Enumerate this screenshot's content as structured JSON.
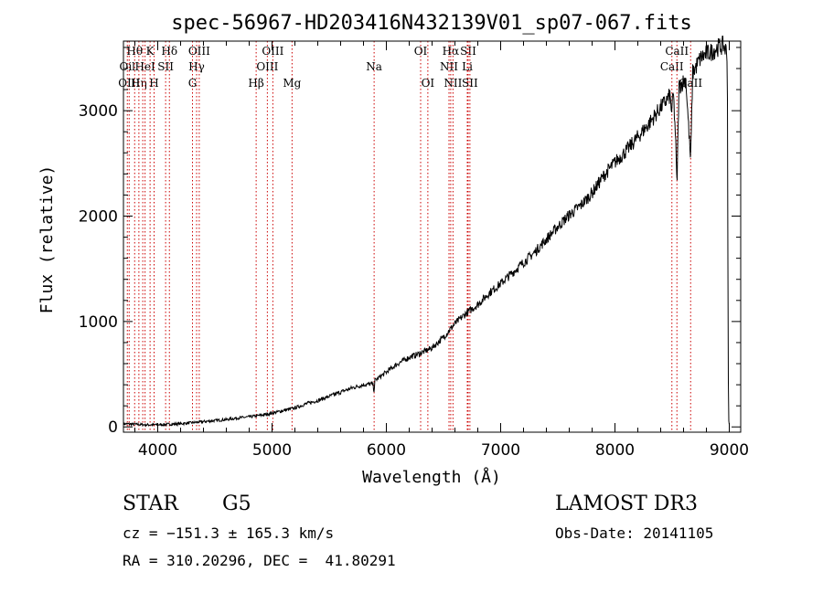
{
  "chart_data": {
    "type": "line",
    "title": "spec-56967-HD203416N432139V01_sp07-067.fits",
    "xlabel": "Wavelength (Å)",
    "ylabel": "Flux (relative)",
    "xlim": [
      3700,
      9100
    ],
    "ylim": [
      -50,
      3660
    ],
    "x_ticks": [
      4000,
      5000,
      6000,
      7000,
      8000,
      9000
    ],
    "y_ticks": [
      0,
      1000,
      2000,
      3000
    ],
    "series": [
      {
        "name": "spectrum",
        "x": [
          3700,
          3800,
          3900,
          4000,
          4100,
          4200,
          4300,
          4400,
          4500,
          4600,
          4700,
          4800,
          4900,
          5000,
          5100,
          5200,
          5300,
          5400,
          5500,
          5600,
          5700,
          5800,
          5880,
          5893,
          5900,
          6000,
          6100,
          6200,
          6300,
          6400,
          6500,
          6600,
          6700,
          6800,
          6900,
          7000,
          7100,
          7200,
          7300,
          7400,
          7500,
          7600,
          7700,
          7800,
          7900,
          8000,
          8100,
          8200,
          8300,
          8400,
          8480,
          8498,
          8510,
          8530,
          8542,
          8560,
          8620,
          8662,
          8680,
          8750,
          8800,
          8850,
          8900,
          8950,
          8980,
          8985,
          8990,
          8995,
          9000
        ],
        "y": [
          30,
          25,
          20,
          20,
          25,
          30,
          40,
          50,
          60,
          70,
          85,
          95,
          110,
          130,
          155,
          180,
          220,
          250,
          290,
          330,
          370,
          400,
          410,
          340,
          440,
          520,
          600,
          660,
          700,
          750,
          850,
          980,
          1080,
          1160,
          1270,
          1360,
          1460,
          1560,
          1660,
          1780,
          1900,
          2010,
          2100,
          2220,
          2380,
          2510,
          2620,
          2750,
          2880,
          3030,
          3140,
          2980,
          3180,
          2750,
          2270,
          3230,
          3300,
          2520,
          3360,
          3500,
          3540,
          3560,
          3600,
          3620,
          3550,
          2980,
          680,
          50,
          20
        ]
      }
    ],
    "lines": [
      {
        "x": 3734,
        "label": "Oil",
        "row": 1
      },
      {
        "x": 3750,
        "label": "OIII",
        "row": 2
      },
      {
        "x": 3798,
        "label": "Hθ",
        "row": 0
      },
      {
        "x": 3835,
        "label": "Hη",
        "row": 2
      },
      {
        "x": 3869,
        "label": "",
        "row": 2
      },
      {
        "x": 3889,
        "label": "HeI",
        "row": 1
      },
      {
        "x": 3933,
        "label": "K",
        "row": 0
      },
      {
        "x": 3968,
        "label": "H",
        "row": 2
      },
      {
        "x": 4069,
        "label": "SII",
        "row": 1
      },
      {
        "x": 4102,
        "label": "Hδ",
        "row": 0
      },
      {
        "x": 4304,
        "label": "G",
        "row": 2
      },
      {
        "x": 4340,
        "label": "Hγ",
        "row": 1
      },
      {
        "x": 4363,
        "label": "OIII",
        "row": 0
      },
      {
        "x": 4861,
        "label": "Hβ",
        "row": 2
      },
      {
        "x": 4959,
        "label": "OIII",
        "row": 1
      },
      {
        "x": 5007,
        "label": "OIII",
        "row": 0
      },
      {
        "x": 5175,
        "label": "Mg",
        "row": 2
      },
      {
        "x": 5893,
        "label": "Na",
        "row": 1
      },
      {
        "x": 6300,
        "label": "OI",
        "row": 0
      },
      {
        "x": 6363,
        "label": "OI",
        "row": 2
      },
      {
        "x": 6548,
        "label": "NII",
        "row": 1
      },
      {
        "x": 6563,
        "label": "Hα",
        "row": 0
      },
      {
        "x": 6583,
        "label": "NII",
        "row": 2
      },
      {
        "x": 6708,
        "label": "Li",
        "row": 1
      },
      {
        "x": 6716,
        "label": "SII",
        "row": 0
      },
      {
        "x": 6731,
        "label": "SII",
        "row": 2
      },
      {
        "x": 8498,
        "label": "CaII",
        "row": 1
      },
      {
        "x": 8542,
        "label": "CaII",
        "row": 0
      },
      {
        "x": 8662,
        "label": "CaII",
        "row": 2
      }
    ]
  },
  "info": {
    "object_type": "STAR",
    "subclass": "G5",
    "survey": "LAMOST DR3",
    "cz": "cz = −151.3 ± 165.3 km/s",
    "obs_date": "Obs-Date: 20141105",
    "radec": "RA = 310.20296, DEC =  41.80291"
  },
  "colors": {
    "spectrum": "#000000",
    "line_marker": "#cc0000",
    "axis": "#000000"
  }
}
